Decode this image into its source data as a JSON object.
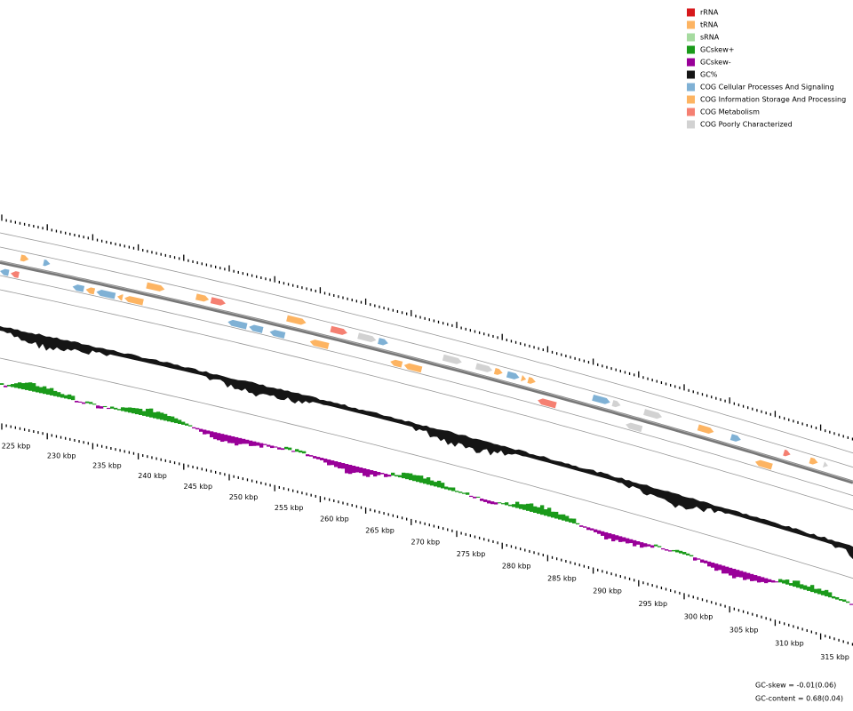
{
  "legend": {
    "items": [
      {
        "label": "rRNA",
        "color": "#d7191c"
      },
      {
        "label": "tRNA",
        "color": "#fdb462"
      },
      {
        "label": "sRNA",
        "color": "#a6dba0"
      },
      {
        "label": "GCskew+",
        "color": "#1a9a1a"
      },
      {
        "label": "GCskew-",
        "color": "#990099"
      },
      {
        "label": "GC%",
        "color": "#151515"
      },
      {
        "label": "COG Cellular Processes And Signaling",
        "color": "#7fb1d5"
      },
      {
        "label": "COG Information Storage And Processing",
        "color": "#fdb462"
      },
      {
        "label": "COG Metabolism",
        "color": "#f58072"
      },
      {
        "label": "COG Poorly Characterized",
        "color": "#d2d2d2"
      }
    ]
  },
  "ruler": {
    "labels": [
      "225 kbp",
      "230 kbp",
      "235 kbp",
      "240 kbp",
      "245 kbp",
      "250 kbp",
      "255 kbp",
      "260 kbp",
      "265 kbp",
      "270 kbp",
      "275 kbp",
      "280 kbp",
      "285 kbp",
      "290 kbp",
      "295 kbp",
      "300 kbp",
      "305 kbp",
      "310 kbp",
      "315 kbp"
    ]
  },
  "footer": {
    "gc_skew": "GC-skew = -0.01(0.06)",
    "gc_content": "GC-content = 0.68(0.04)"
  }
}
